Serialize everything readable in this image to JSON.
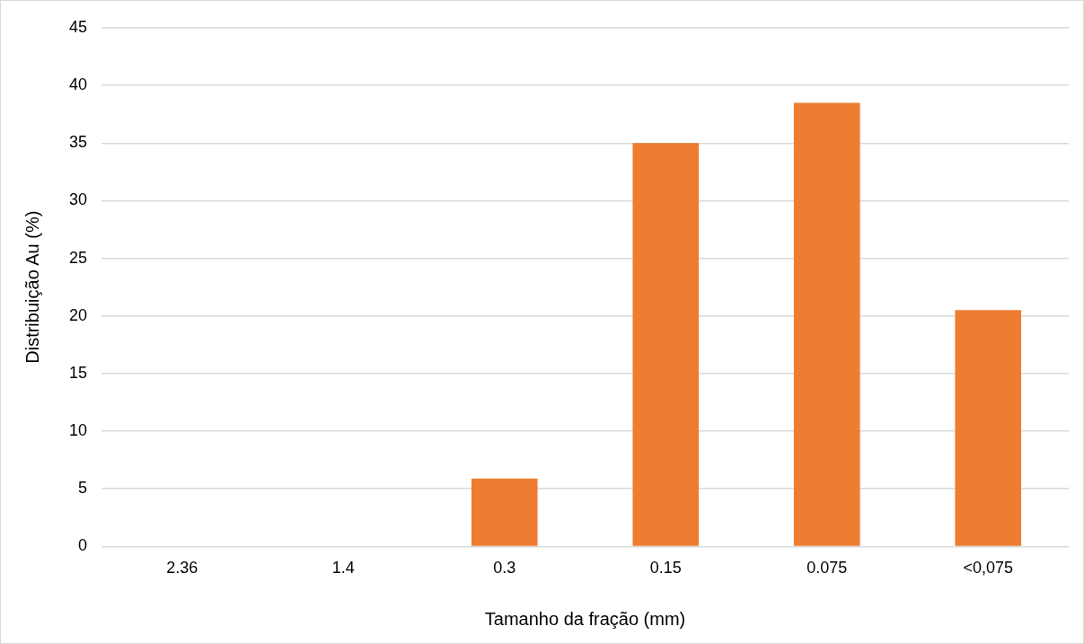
{
  "chart_data": {
    "type": "bar",
    "xlabel": "Tamanho da fração (mm)",
    "ylabel": "Distribuição Au (%)",
    "categories": [
      "2.36",
      "1.4",
      "0.3",
      "0.15",
      "0.075",
      "<0,075"
    ],
    "values": [
      0,
      0,
      5.9,
      35.0,
      38.5,
      20.5
    ],
    "color": "#ed7d31",
    "ylim": [
      0,
      45
    ],
    "yticks": [
      0,
      5,
      10,
      15,
      20,
      25,
      30,
      35,
      40,
      45
    ],
    "grid": "y",
    "legend": false
  }
}
